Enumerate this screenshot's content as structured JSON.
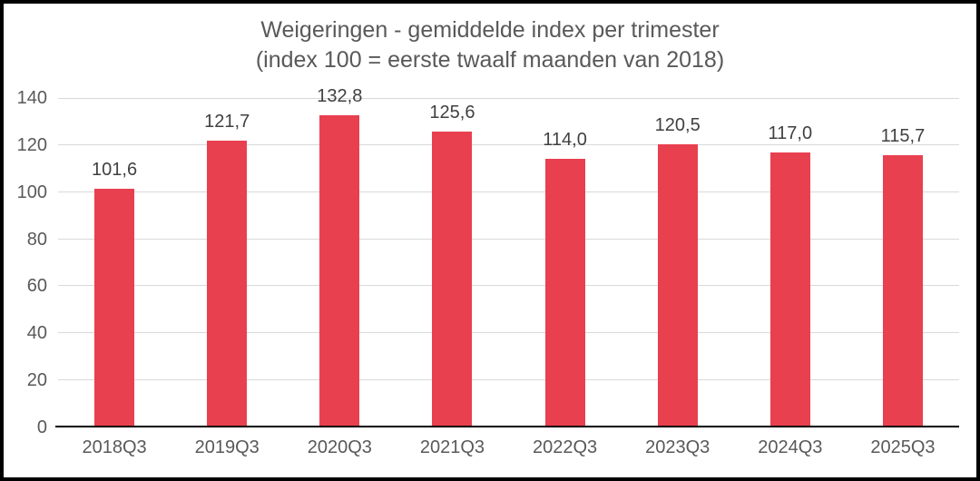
{
  "chart": {
    "title_line1": "Weigeringen - gemiddelde index per trimester",
    "title_line2": "(index 100 = eerste twaalf maanden van 2018)"
  },
  "chart_data": {
    "type": "bar",
    "title": "Weigeringen - gemiddelde index per trimester (index 100 = eerste twaalf maanden van 2018)",
    "categories": [
      "2018Q3",
      "2019Q3",
      "2020Q3",
      "2021Q3",
      "2022Q3",
      "2023Q3",
      "2024Q3",
      "2025Q3"
    ],
    "values": [
      101.6,
      121.7,
      132.8,
      125.6,
      114.0,
      120.5,
      117.0,
      115.7
    ],
    "value_labels": [
      "101,6",
      "121,7",
      "132,8",
      "125,6",
      "114,0",
      "120,5",
      "117,0",
      "115,7"
    ],
    "xlabel": "",
    "ylabel": "",
    "ylim": [
      0,
      140
    ],
    "yticks": [
      0,
      20,
      40,
      60,
      80,
      100,
      120,
      140
    ],
    "grid": true,
    "legend": false,
    "colors": {
      "bar": "#e8404f",
      "gridline": "#d9d9d9",
      "axis_line": "#000000",
      "title_text": "#595959",
      "tick_text": "#595959",
      "value_label_text": "#404040",
      "border": "#000000",
      "background": "#ffffff"
    }
  }
}
